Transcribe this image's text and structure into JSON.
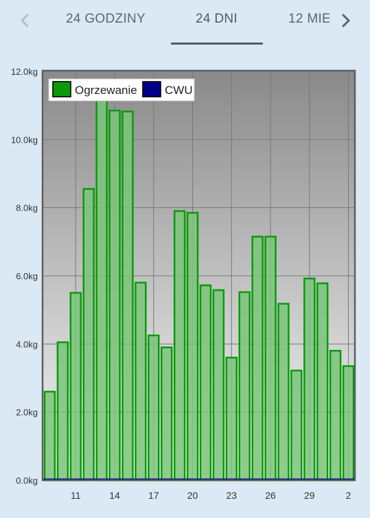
{
  "tabs": [
    {
      "label": "24 GODZINY"
    },
    {
      "label": "24 DNI",
      "active": true
    },
    {
      "label": "12 MIE"
    }
  ],
  "icons": {
    "prev": "chevron-left-icon",
    "next": "chevron-right-icon"
  },
  "colors": {
    "background": "#dbe9f5",
    "series_fill": "#7bc47b",
    "series_stroke": "#0a9a0a",
    "cwu": "#000088"
  },
  "chart_data": {
    "type": "bar",
    "y_tick_labels": [
      "0.0kg",
      "2.0kg",
      "4.0kg",
      "6.0kg",
      "8.0kg",
      "10.0kg",
      "12.0kg"
    ],
    "ylim": [
      0,
      12
    ],
    "x_ticks": [
      {
        "label": "11",
        "index": 2.5
      },
      {
        "label": "14",
        "index": 5.5
      },
      {
        "label": "17",
        "index": 8.5
      },
      {
        "label": "20",
        "index": 11.5
      },
      {
        "label": "23",
        "index": 14.5
      },
      {
        "label": "26",
        "index": 17.5
      },
      {
        "label": "29",
        "index": 20.5
      },
      {
        "label": "2",
        "index": 23.5
      }
    ],
    "series": [
      {
        "name": "Ogrzewanie",
        "color": "#0a9a0a",
        "values": [
          2.6,
          4.05,
          5.5,
          8.55,
          11.65,
          10.85,
          10.82,
          5.8,
          4.25,
          3.9,
          7.9,
          7.85,
          5.72,
          5.58,
          3.6,
          5.52,
          7.15,
          7.15,
          5.18,
          3.22,
          5.92,
          5.78,
          3.8,
          3.35
        ]
      },
      {
        "name": "CWU",
        "color": "#000088",
        "values": [
          0,
          0,
          0,
          0,
          0,
          0,
          0,
          0,
          0,
          0,
          0,
          0,
          0,
          0,
          0,
          0,
          0,
          0,
          0,
          0,
          0,
          0,
          0,
          0
        ]
      }
    ],
    "grid": true,
    "legend_position": "top-left"
  }
}
